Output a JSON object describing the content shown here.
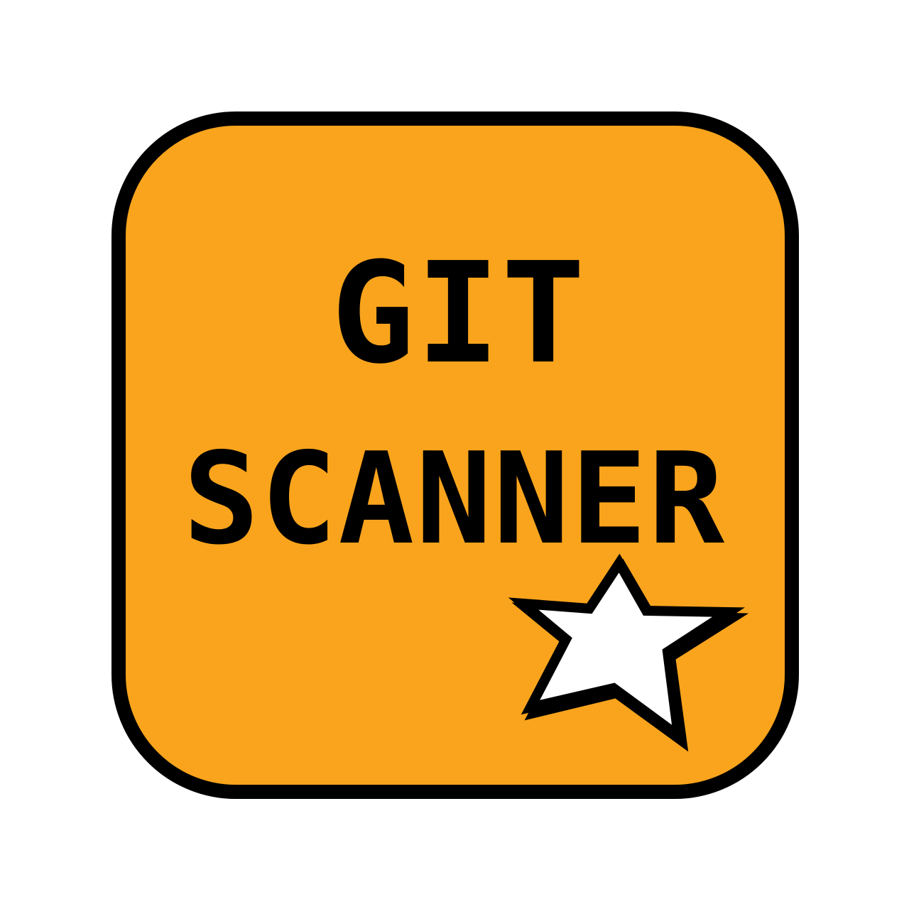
{
  "icon": {
    "line1": "GIT",
    "line2": "SCANNER",
    "background_color": "#f9a41c",
    "border_color": "#000000",
    "text_color": "#000000",
    "badge_icon": "star-icon",
    "badge_color": "#ffffff"
  }
}
